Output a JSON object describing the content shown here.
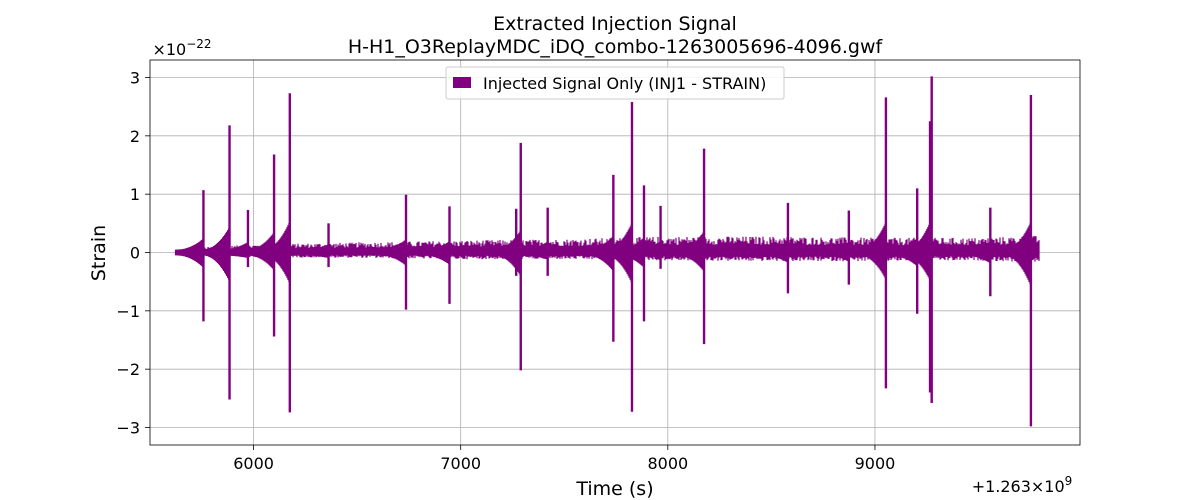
{
  "chart_data": {
    "type": "line",
    "title": "Extracted Injection Signal",
    "subtitle": "H-H1_O3ReplayMDC_iDQ_combo-1263005696-4096.gwf",
    "xlabel": "Time (s)",
    "ylabel": "Strain",
    "x_offset_label": "+1.263×10",
    "x_offset_exponent": "9",
    "y_scale_label": "×10",
    "y_scale_exponent": "−22",
    "xlim": [
      5500,
      9990
    ],
    "ylim": [
      -3.3,
      3.3
    ],
    "xticks": [
      6000,
      7000,
      8000,
      9000
    ],
    "xtick_labels": [
      "6000",
      "7000",
      "8000",
      "9000"
    ],
    "yticks": [
      -3,
      -2,
      -1,
      0,
      1,
      2,
      3
    ],
    "ytick_labels": [
      "−3",
      "−2",
      "−1",
      "0",
      "1",
      "2",
      "3"
    ],
    "grid": true,
    "legend_position": "top-center",
    "series": [
      {
        "name": "Injected Signal Only (INJ1 - STRAIN)",
        "color": "#800080",
        "x_range": [
          5696,
          9792
        ],
        "background_upper": [
          [
            5700,
            0.07
          ],
          [
            6000,
            0.12
          ],
          [
            6500,
            0.15
          ],
          [
            7000,
            0.18
          ],
          [
            7500,
            0.2
          ],
          [
            8000,
            0.24
          ],
          [
            8500,
            0.24
          ],
          [
            9000,
            0.22
          ],
          [
            9500,
            0.22
          ],
          [
            9790,
            0.25
          ]
        ],
        "background_lower": [
          [
            5700,
            -0.05
          ],
          [
            6000,
            -0.07
          ],
          [
            6500,
            -0.08
          ],
          [
            7000,
            -0.1
          ],
          [
            7500,
            -0.1
          ],
          [
            8000,
            -0.12
          ],
          [
            8500,
            -0.13
          ],
          [
            9000,
            -0.13
          ],
          [
            9500,
            -0.12
          ],
          [
            9790,
            -0.15
          ]
        ],
        "spikes": [
          {
            "t": 5758,
            "top": 1.07,
            "bottom": -1.18
          },
          {
            "t": 5884,
            "top": 2.18,
            "bottom": -2.52
          },
          {
            "t": 5973,
            "top": 0.73,
            "bottom": -0.25
          },
          {
            "t": 6099,
            "top": 1.68,
            "bottom": -1.44
          },
          {
            "t": 6175,
            "top": 2.73,
            "bottom": -2.74
          },
          {
            "t": 6362,
            "top": 0.5,
            "bottom": -0.25
          },
          {
            "t": 6736,
            "top": 0.99,
            "bottom": -0.98
          },
          {
            "t": 6946,
            "top": 0.79,
            "bottom": -0.88
          },
          {
            "t": 7268,
            "top": 0.75,
            "bottom": -0.4
          },
          {
            "t": 7290,
            "top": 1.88,
            "bottom": -2.02
          },
          {
            "t": 7420,
            "top": 0.77,
            "bottom": -0.4
          },
          {
            "t": 7737,
            "top": 1.33,
            "bottom": -1.53
          },
          {
            "t": 7827,
            "top": 2.58,
            "bottom": -2.73
          },
          {
            "t": 7885,
            "top": 1.15,
            "bottom": -1.18
          },
          {
            "t": 7965,
            "top": 0.8,
            "bottom": -0.28
          },
          {
            "t": 8175,
            "top": 1.78,
            "bottom": -1.57
          },
          {
            "t": 8580,
            "top": 0.85,
            "bottom": -0.7
          },
          {
            "t": 8874,
            "top": 0.72,
            "bottom": -0.55
          },
          {
            "t": 9053,
            "top": 2.66,
            "bottom": -2.33
          },
          {
            "t": 9204,
            "top": 1.1,
            "bottom": -1.05
          },
          {
            "t": 9266,
            "top": 2.25,
            "bottom": -2.4
          },
          {
            "t": 9274,
            "top": 3.02,
            "bottom": -2.58
          },
          {
            "t": 9557,
            "top": 0.77,
            "bottom": -0.75
          },
          {
            "t": 9753,
            "top": 2.7,
            "bottom": -2.98
          }
        ]
      }
    ]
  }
}
